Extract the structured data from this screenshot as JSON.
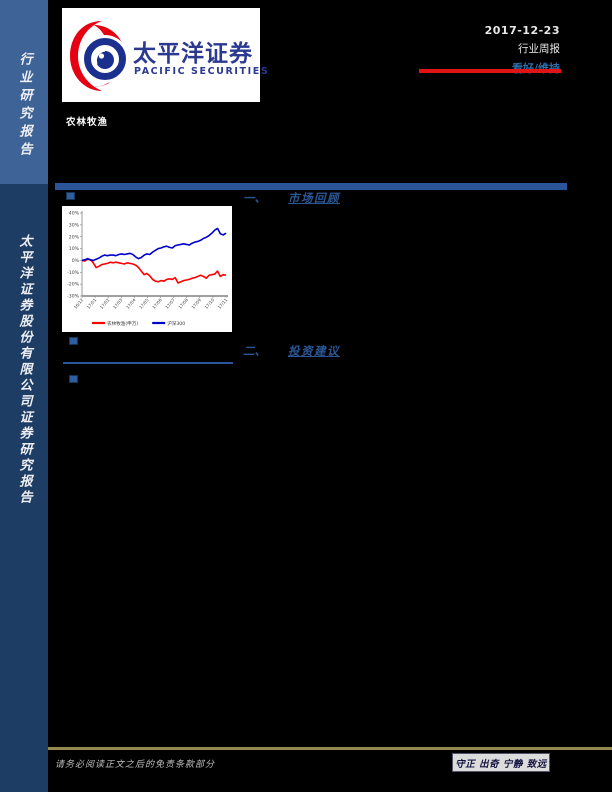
{
  "sidebar": {
    "top_label": "行业研究报告",
    "bottom_label": "太平洋证券股份有限公司证券研究报告",
    "top_bg": "#3E6396",
    "bottom_bg": "#1E3D64"
  },
  "header": {
    "logo": {
      "cn": "太平洋证券",
      "en": "PACIFIC SECURITIES",
      "brand_blue": "#2B3990",
      "brand_red": "#E60012"
    },
    "date": "2017-12-23",
    "report_type": "行业周报",
    "rating": "看好/维持",
    "rating_color": "#2D6DA8",
    "underline_color": "#E01414",
    "industry": "农林牧渔"
  },
  "sections": [
    {
      "num": "一、",
      "title": "市场回顾"
    },
    {
      "num": "二、",
      "title": "投资建议"
    }
  ],
  "footer": {
    "disclaimer": "请务必阅读正文之后的免责条款部分",
    "motto": "守正 出奇 宁静 致远",
    "line_color": "#94894F"
  },
  "chart_data": {
    "type": "line",
    "title": "",
    "xlabel": "",
    "ylabel": "",
    "ylim": [
      -30,
      40
    ],
    "grid": false,
    "legend_position": "bottom",
    "y_ticks": [
      "40%",
      "30%",
      "20%",
      "10%",
      "0%",
      "-10%",
      "-20%",
      "-30%"
    ],
    "x_ticks": [
      "16/12",
      "17/01",
      "17/02",
      "17/03",
      "17/04",
      "17/05",
      "17/06",
      "17/07",
      "17/08",
      "17/09",
      "17/10",
      "17/11"
    ],
    "axis_color": "#808080",
    "series": [
      {
        "name": "农林牧渔(申万)",
        "color": "#FF0000",
        "values": [
          0,
          -0.5,
          1,
          0.5,
          -2,
          -6,
          -5,
          -3.5,
          -3,
          -2.5,
          -1.5,
          -2,
          -1.5,
          -2,
          -2.5,
          -3,
          -2,
          -2.5,
          -3,
          -4,
          -6,
          -9,
          -12,
          -11,
          -13,
          -16,
          -17.5,
          -18,
          -17,
          -17.5,
          -16,
          -15.5,
          -16,
          -14.5,
          -19,
          -18,
          -17,
          -16.5,
          -16,
          -15,
          -14.5,
          -13.5,
          -12.5,
          -13.5,
          -15,
          -12.5,
          -12,
          -11.5,
          -9,
          -13.5,
          -12,
          -12.5
        ]
      },
      {
        "name": "沪深300",
        "color": "#0000CC",
        "values": [
          0,
          0.5,
          1.5,
          0.5,
          0,
          1,
          2,
          3.5,
          4.5,
          4,
          4.5,
          4.5,
          4,
          5,
          5.5,
          5,
          5.5,
          6,
          5,
          3,
          1.5,
          2.5,
          4.5,
          5.5,
          5,
          7,
          8.5,
          10,
          10.5,
          11.5,
          12,
          11,
          10.5,
          12.5,
          13,
          13.5,
          14,
          13.5,
          13,
          14.5,
          15.5,
          16,
          17,
          18.5,
          19.5,
          21,
          23,
          25.5,
          27,
          22.5,
          21.5,
          23
        ]
      }
    ]
  }
}
